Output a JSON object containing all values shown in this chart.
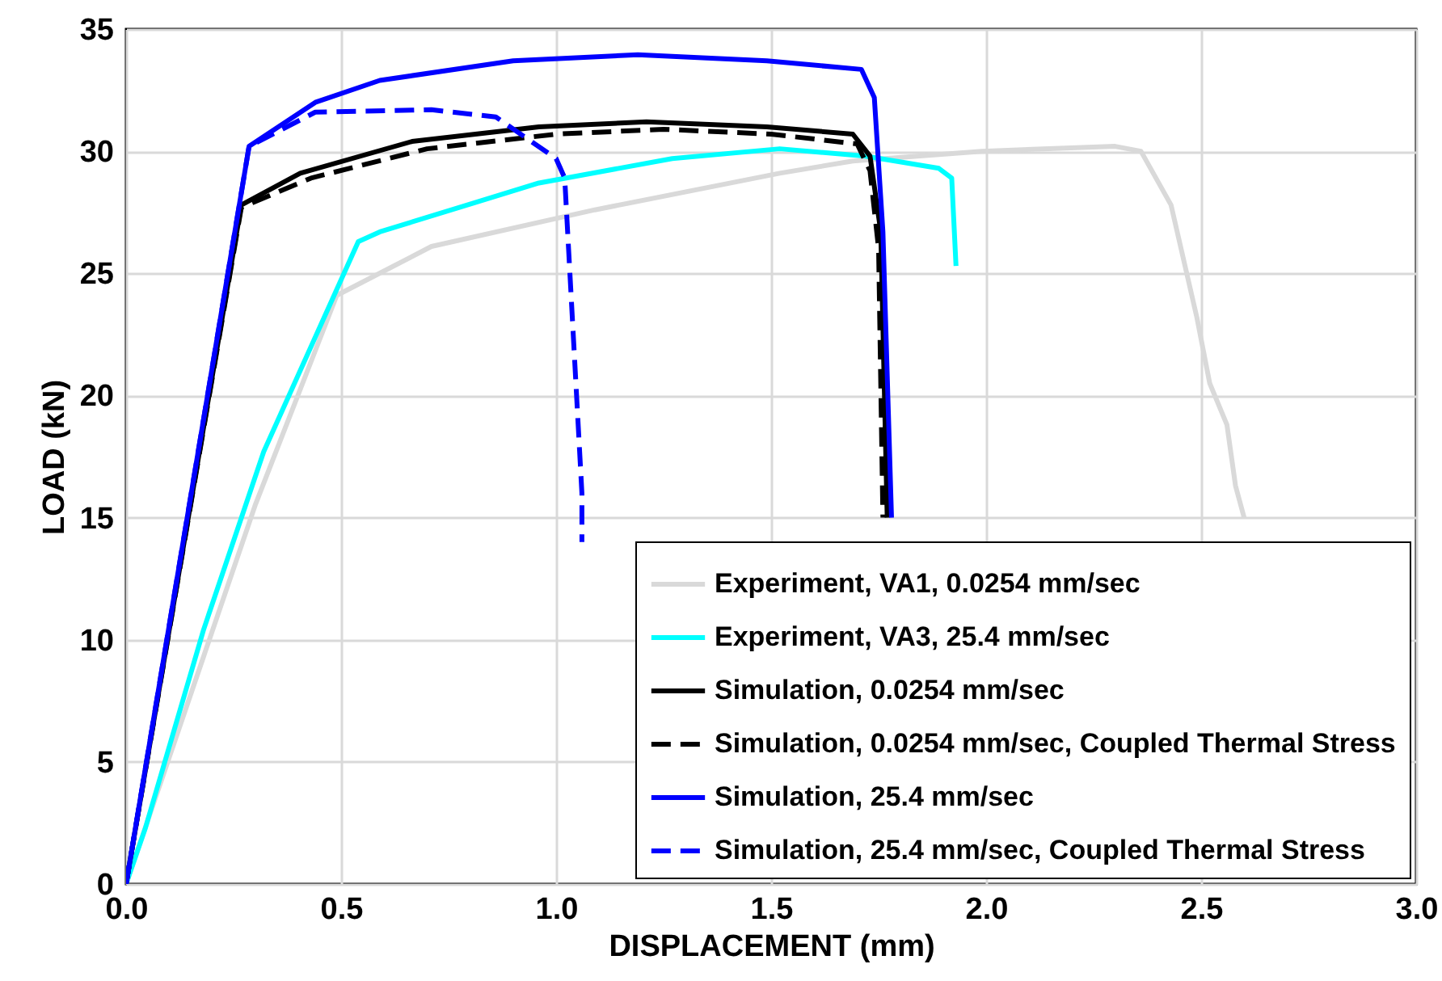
{
  "chart_data": {
    "type": "line",
    "xlabel": "DISPLACEMENT (mm)",
    "ylabel": "LOAD (kN)",
    "xlim": [
      0,
      3
    ],
    "ylim": [
      0,
      35
    ],
    "xticks": [
      {
        "value": 0,
        "label": "0.0"
      },
      0.5,
      {
        "value": 1,
        "label": "1.0"
      },
      1.5,
      {
        "value": 2,
        "label": "2.0"
      },
      2.5,
      {
        "value": 3,
        "label": "3.0"
      }
    ],
    "yticks": [
      0,
      5,
      10,
      15,
      20,
      25,
      30,
      35
    ],
    "grid": true,
    "legend": "bottom right",
    "series": [
      {
        "name": "Experiment, VA1, 0.0254 mm/sec",
        "color": "#d9d9d9",
        "line_style": "solid",
        "x": [
          0,
          0.3,
          0.49,
          0.71,
          1.09,
          1.52,
          1.69,
          1.99,
          2.3,
          2.36,
          2.43,
          2.49,
          2.52,
          2.56,
          2.58,
          2.6
        ],
        "values": [
          0,
          15.5,
          24.1,
          26.1,
          27.6,
          29.1,
          29.6,
          30.0,
          30.2,
          30.0,
          27.8,
          23.2,
          20.5,
          18.8,
          16.3,
          15.0
        ]
      },
      {
        "name": "Experiment, VA3, 25.4 mm/sec",
        "color": "#00ffff",
        "line_style": "solid",
        "x": [
          0,
          0.045,
          0.18,
          0.32,
          0.54,
          0.59,
          0.96,
          1.27,
          1.52,
          1.72,
          1.89,
          1.92,
          1.93
        ],
        "values": [
          0,
          2.3,
          10.4,
          17.7,
          26.3,
          26.7,
          28.7,
          29.7,
          30.1,
          29.8,
          29.3,
          28.9,
          25.3
        ]
      },
      {
        "name": "Simulation, 0.0254 mm/sec",
        "color": "#000000",
        "line_style": "solid",
        "x": [
          0,
          0.268,
          0.405,
          0.665,
          0.96,
          1.21,
          1.49,
          1.69,
          1.73,
          1.755,
          1.77
        ],
        "values": [
          0,
          27.8,
          29.1,
          30.4,
          31.0,
          31.2,
          31.0,
          30.7,
          29.8,
          26.7,
          15.0
        ]
      },
      {
        "name": "Simulation, 0.0254 mm/sec, Coupled Thermal Stress",
        "color": "#000000",
        "line_style": "dashed",
        "x": [
          0,
          0.268,
          0.43,
          0.7,
          1.0,
          1.25,
          1.5,
          1.7,
          1.73,
          1.75,
          1.76
        ],
        "values": [
          0,
          27.7,
          28.9,
          30.1,
          30.7,
          30.9,
          30.7,
          30.3,
          29.2,
          26.0,
          15.0
        ]
      },
      {
        "name": "Simulation, 25.4 mm/sec",
        "color": "#0000ff",
        "line_style": "solid",
        "x": [
          0,
          0.286,
          0.44,
          0.59,
          0.9,
          1.19,
          1.49,
          1.71,
          1.74,
          1.76,
          1.78
        ],
        "values": [
          0,
          30.2,
          32.0,
          32.9,
          33.7,
          33.95,
          33.7,
          33.35,
          32.2,
          26.7,
          15.0
        ]
      },
      {
        "name": "Simulation, 25.4 mm/sec, Coupled Thermal Stress",
        "color": "#0000ff",
        "line_style": "dashed",
        "x": [
          0,
          0.286,
          0.44,
          0.71,
          0.86,
          1.0,
          1.02,
          1.06,
          1.06
        ],
        "values": [
          0,
          30.2,
          31.6,
          31.7,
          31.4,
          29.7,
          28.9,
          16.0,
          14.0
        ]
      }
    ]
  }
}
